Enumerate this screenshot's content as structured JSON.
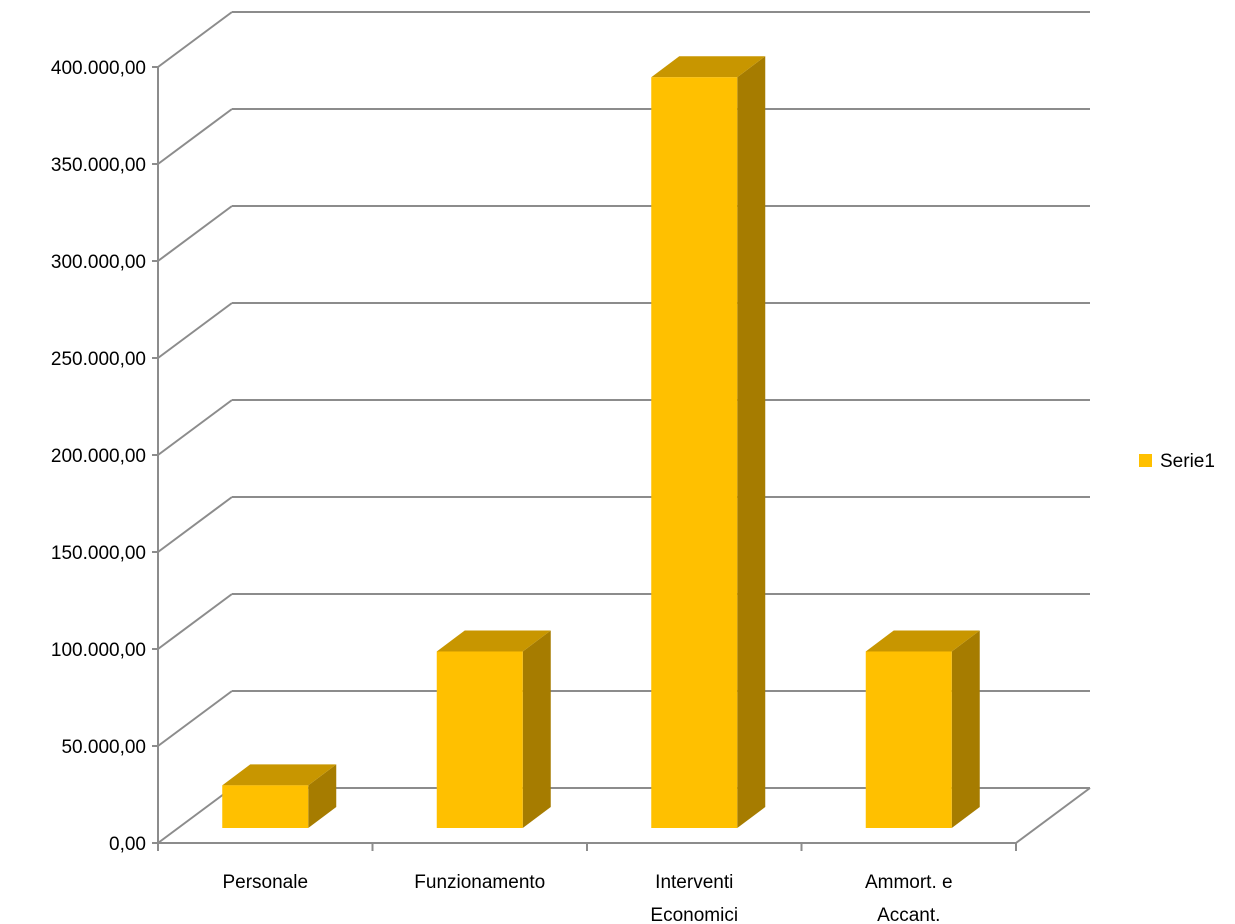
{
  "chart_data": {
    "type": "bar",
    "three_d": true,
    "categories": [
      [
        "Personale"
      ],
      [
        "Funzionamento"
      ],
      [
        "Interventi",
        "Economici"
      ],
      [
        "Ammort. e",
        "Accant."
      ]
    ],
    "series": [
      {
        "name": "Serie1",
        "values": [
          22000,
          91000,
          387000,
          91000
        ]
      }
    ],
    "ylim": [
      0,
      400000
    ],
    "yticks": [
      0,
      50000,
      100000,
      150000,
      200000,
      250000,
      300000,
      350000,
      400000
    ],
    "ytick_labels": [
      "0,00",
      "50.000,00",
      "100.000,00",
      "150.000,00",
      "200.000,00",
      "250.000,00",
      "300.000,00",
      "350.000,00",
      "400.000,00"
    ],
    "grid": true,
    "legend": "right",
    "colors": {
      "front": "#FFC000",
      "top": "#C89600",
      "side": "#A67C00",
      "grid": "#8C8C8C"
    }
  }
}
